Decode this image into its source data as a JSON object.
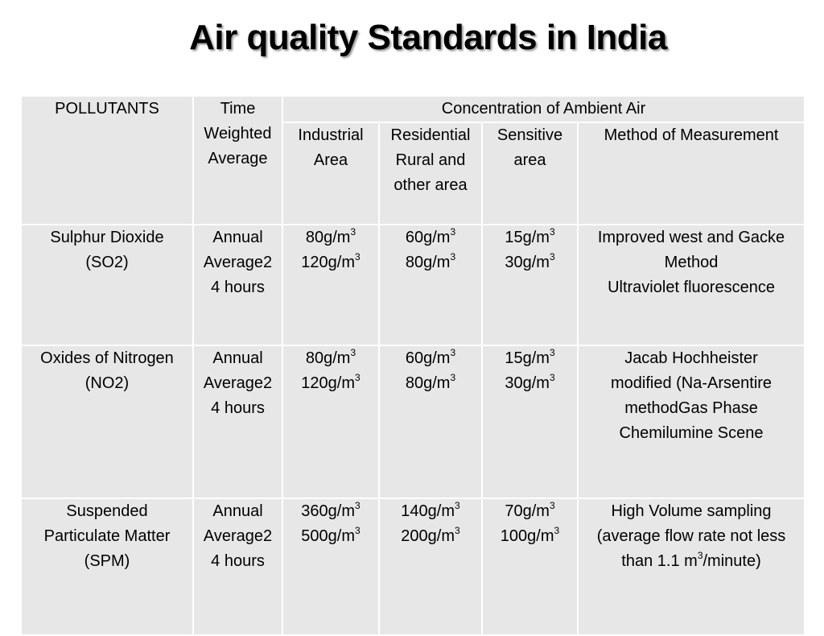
{
  "title": "Air quality Standards in India",
  "table": {
    "pollutants_header": "POLLUTANTS",
    "time_header": [
      "Time",
      "Weighted",
      "Average"
    ],
    "group_header": "Concentration of Ambient Air",
    "columns": {
      "industrial": [
        "Industrial",
        "Area"
      ],
      "residential": [
        "Residential",
        "Rural and",
        "other area"
      ],
      "sensitive": [
        "Sensitive",
        "area"
      ],
      "method": "Method of Measurement"
    },
    "unit_sup": "3",
    "rows": [
      {
        "pollutant": [
          "Sulphur Dioxide",
          "(SO2)"
        ],
        "time": [
          "Annual",
          "Average2",
          "4 hours"
        ],
        "industrial": [
          "80g/m",
          "120g/m"
        ],
        "residential": [
          "60g/m",
          "80g/m"
        ],
        "sensitive": [
          "15g/m",
          "30g/m"
        ],
        "method": [
          "Improved west and Gacke",
          "Method",
          "Ultraviolet fluorescence"
        ]
      },
      {
        "pollutant": [
          "Oxides of Nitrogen",
          "(NO2)"
        ],
        "time": [
          "Annual",
          "Average2",
          "4 hours"
        ],
        "industrial": [
          "80g/m",
          "120g/m"
        ],
        "residential": [
          "60g/m",
          "80g/m"
        ],
        "sensitive": [
          "15g/m",
          "30g/m"
        ],
        "method": [
          "Jacab Hochheister",
          "modified (Na-Arsentire",
          "methodGas Phase",
          "Chemilumine Scene"
        ]
      },
      {
        "pollutant": [
          "Suspended",
          "Particulate Matter",
          "(SPM)"
        ],
        "time": [
          "Annual",
          "Average2",
          "4 hours"
        ],
        "industrial": [
          "360g/m",
          "500g/m"
        ],
        "residential": [
          "140g/m",
          "200g/m"
        ],
        "sensitive": [
          "70g/m",
          "100g/m"
        ],
        "method": [
          "High Volume sampling",
          "(average flow rate not less",
          "than 1.1 m",
          "/minute)"
        ]
      }
    ]
  }
}
